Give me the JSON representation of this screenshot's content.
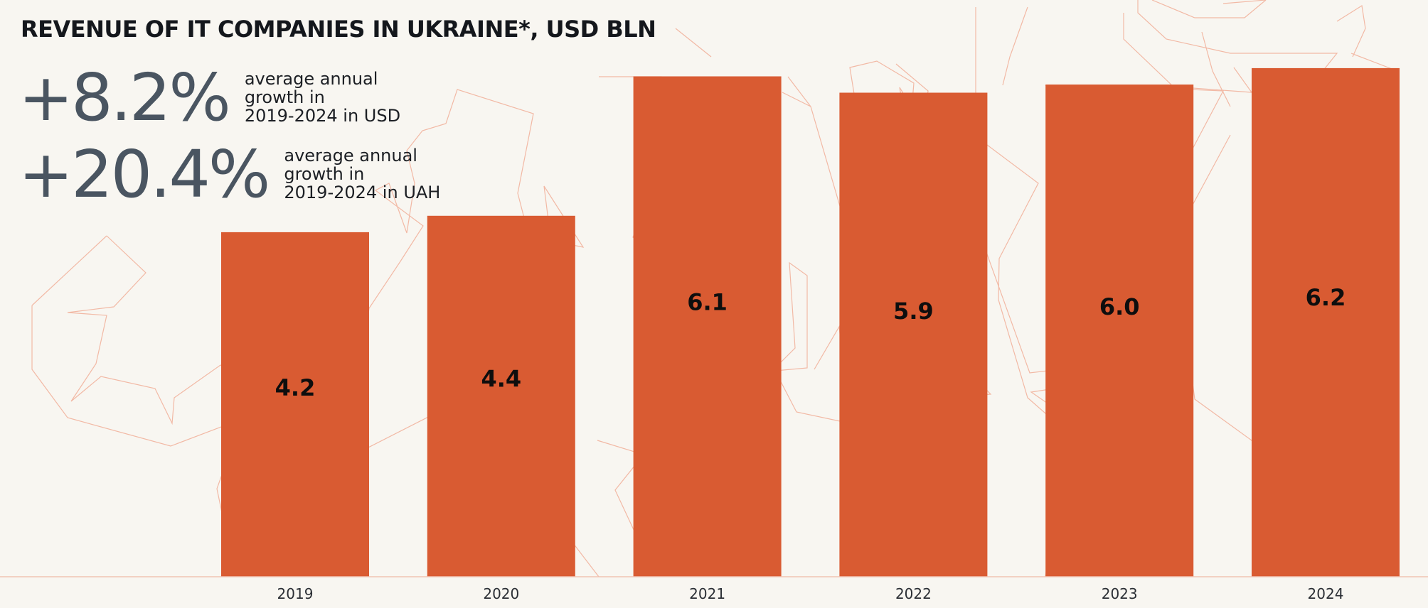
{
  "header": {
    "title": "REVENUE OF IT COMPANIES IN UKRAINE*, USD BLN"
  },
  "stats": [
    {
      "value": "+8.2%",
      "description": "average annual\ngrowth in\n2019-2024 in USD"
    },
    {
      "value": "+20.4%",
      "description": "average annual\ngrowth in\n2019-2024 in UAH"
    }
  ],
  "colors": {
    "bar": "#d95b32",
    "background": "#f8f6f1",
    "decor_line": "#f2b9a5",
    "axis_line": "#f0c3b3"
  },
  "chart_data": {
    "type": "bar",
    "title": "REVENUE OF IT COMPANIES IN UKRAINE*, USD BLN",
    "categories": [
      "2019",
      "2020",
      "2021",
      "2022",
      "2023",
      "2024"
    ],
    "values": [
      4.2,
      4.4,
      6.1,
      5.9,
      6.0,
      6.2
    ],
    "data_labels": [
      "4.2",
      "4.4",
      "6.1",
      "5.9",
      "6.0",
      "6.2"
    ],
    "xlabel": "",
    "ylabel": "",
    "ylim": [
      0,
      7
    ],
    "grid": false,
    "legend": "none"
  }
}
